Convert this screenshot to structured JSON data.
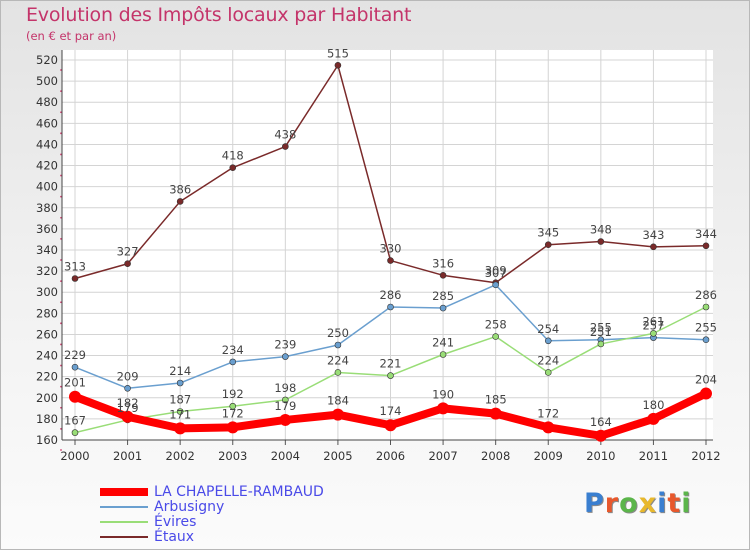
{
  "header": {
    "title": "Evolution des Impôts locaux par Habitant",
    "subtitle": "(en € et par an)"
  },
  "logo": {
    "text": "Proxiti",
    "colors": [
      "#3a7fd0",
      "#e8582c",
      "#5bb54a",
      "#e8b82c",
      "#3a7fd0",
      "#e8582c",
      "#5bb54a"
    ]
  },
  "chart_data": {
    "type": "line",
    "x": [
      "2000",
      "2001",
      "2002",
      "2003",
      "2004",
      "2005",
      "2006",
      "2007",
      "2008",
      "2009",
      "2010",
      "2011",
      "2012"
    ],
    "ylim": [
      160,
      520
    ],
    "yticks": [
      160,
      180,
      200,
      220,
      240,
      260,
      280,
      300,
      320,
      340,
      360,
      380,
      400,
      420,
      440,
      460,
      480,
      500,
      520
    ],
    "grid": true,
    "legend_position": "bottom-left",
    "series": [
      {
        "name": "LA CHAPELLE-RAMBAUD",
        "color": "#ff0000",
        "width": 8,
        "marker": 6,
        "values": [
          201,
          182,
          171,
          172,
          179,
          184,
          174,
          190,
          185,
          172,
          164,
          180,
          204
        ]
      },
      {
        "name": "Arbusigny",
        "color": "#6a9fcf",
        "width": 1.5,
        "marker": 3,
        "values": [
          229,
          209,
          214,
          234,
          239,
          250,
          286,
          285,
          307,
          254,
          255,
          257,
          255
        ]
      },
      {
        "name": "Évires",
        "color": "#99dd77",
        "width": 1.5,
        "marker": 3,
        "values": [
          167,
          179,
          187,
          192,
          198,
          224,
          221,
          241,
          258,
          224,
          251,
          261,
          286
        ]
      },
      {
        "name": "Étaux",
        "color": "#7a2a2a",
        "width": 1.5,
        "marker": 3,
        "values": [
          313,
          327,
          386,
          418,
          438,
          515,
          330,
          316,
          309,
          345,
          348,
          343,
          344
        ]
      }
    ]
  }
}
